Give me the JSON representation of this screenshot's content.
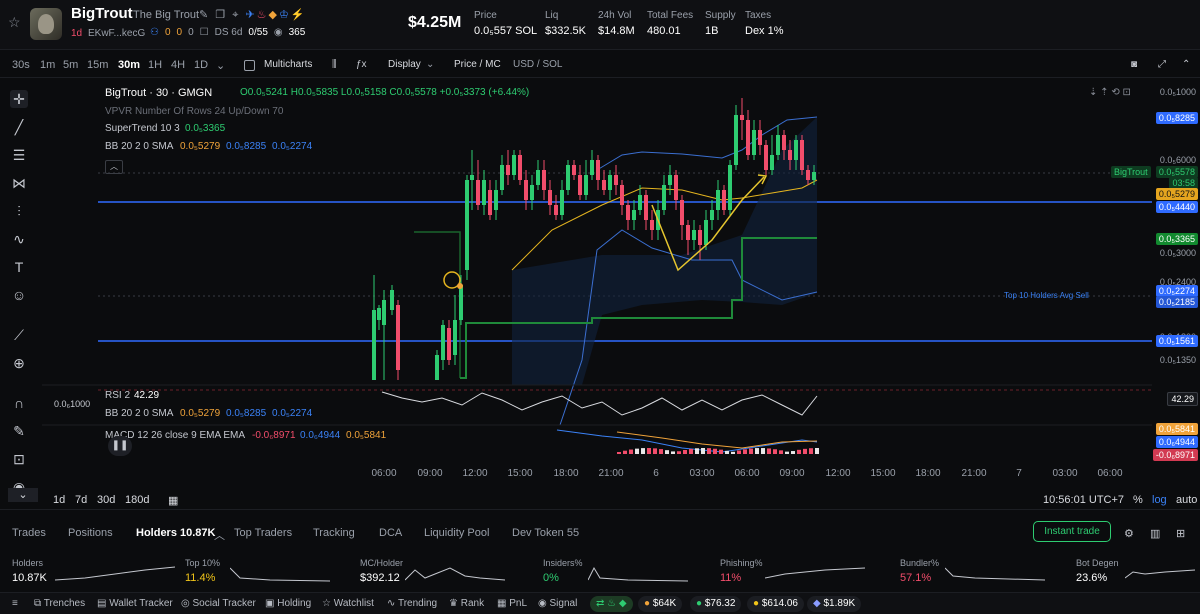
{
  "header": {
    "token_name": "BigTrout",
    "token_full_name": "The Big Trout",
    "age": "1d",
    "address": "EKwF...kecG",
    "badges": [
      "0",
      "0",
      "0"
    ],
    "ds_label": "DS 6d",
    "holders_ratio": "0/55",
    "views": "365",
    "market_cap": "$4.25M",
    "stats": [
      {
        "label": "Price",
        "value": "0.0₅557 SOL"
      },
      {
        "label": "Liq",
        "value": "$332.5K"
      },
      {
        "label": "24h Vol",
        "value": "$14.8M"
      },
      {
        "label": "Total Fees",
        "value": "480.01"
      },
      {
        "label": "Supply",
        "value": "1B"
      },
      {
        "label": "Taxes",
        "value": "Dex 1%"
      }
    ]
  },
  "toolbar": {
    "timeframes": [
      "30s",
      "1m",
      "5m",
      "15m",
      "30m",
      "1H",
      "4H",
      "1D"
    ],
    "active_timeframe": "30m",
    "multicharts": "Multicharts",
    "display": "Display",
    "price_mc": "Price / MC",
    "usd_sol": "USD / SOL"
  },
  "legend": {
    "title": "BigTrout · 30 · GMGN",
    "ohlc": "O0.0₅5241 H0.0₅5835 L0.0₅5158 C0.0₅5578 +0.0₅3373 (+6.44%)",
    "vpvr": "VPVR Number Of Rows 24 Up/Down 70",
    "supertrend_label": "SuperTrend 10 3",
    "supertrend_value": "0.0₅3365",
    "bb_label": "BB 20 2 0 SMA",
    "bb_values": [
      "0.0₅5279",
      "0.0₅8285",
      "0.0₅2274"
    ],
    "rsi_label": "RSI 2",
    "rsi_value": "42.29",
    "bb2_label": "BB 20 2 0 SMA",
    "bb2_values": [
      "0.0₅5279",
      "0.0₅8285",
      "0.0₅2274"
    ],
    "macd_label": "MACD 12 26 close 9 EMA EMA",
    "macd_values": [
      "-0.0₆8971",
      "0.0₆4944",
      "0.0₅5841"
    ],
    "rsi_scale": "0.0₆1000",
    "holders_avg_sell": "Top 10 Holders Avg Sell"
  },
  "price_scale": {
    "labels": [
      "0.0₅1000",
      "0.0₅8285",
      "0.0₅6000",
      "0.0₅5578",
      "03:58",
      "0.0₅5279",
      "0.0₅4440",
      "0.0₅3365",
      "0.0₅3000",
      "0.0₅2400",
      "0.0₅2274",
      "0.0₅2185",
      "0.0₅1800",
      "0.0₅1561",
      "0.0₅1350"
    ],
    "symbol_tag": "BigTrout",
    "rsi_tag": "42.29",
    "macd_tags": [
      "0.0₅5841",
      "0.0₆4944",
      "-0.0₆8971"
    ]
  },
  "time_axis": [
    "06:00",
    "09:00",
    "12:00",
    "15:00",
    "18:00",
    "21:00",
    "6",
    "03:00",
    "06:00",
    "09:00",
    "12:00",
    "15:00",
    "18:00",
    "21:00",
    "7",
    "03:00",
    "06:00"
  ],
  "range_bar": {
    "ranges": [
      "1d",
      "7d",
      "30d",
      "180d"
    ],
    "clock": "10:56:01 UTC+7",
    "percent": "%",
    "log": "log",
    "auto": "auto"
  },
  "tabs": [
    "Trades",
    "Positions",
    "Holders 10.87K",
    "Top Traders",
    "Tracking",
    "DCA",
    "Liquidity Pool",
    "Dev Token 55"
  ],
  "active_tab": "Holders 10.87K",
  "instant_trade": "Instant trade",
  "holder_stats": [
    {
      "label": "Holders",
      "value": "10.87K",
      "color": "#ffffff"
    },
    {
      "label": "Top 10%",
      "value": "11.4%",
      "color": "#f0c419"
    },
    {
      "label": "MC/Holder",
      "value": "$392.12",
      "color": "#ffffff"
    },
    {
      "label": "Insiders%",
      "value": "0%",
      "color": "#2ecc71"
    },
    {
      "label": "Phishing%",
      "value": "11%",
      "color": "#f24d6b"
    },
    {
      "label": "Bundler%",
      "value": "57.1%",
      "color": "#f24d6b"
    },
    {
      "label": "Bot Degen",
      "value": "23.6%",
      "color": "#ffffff"
    }
  ],
  "footer": {
    "items": [
      "Trenches",
      "Wallet Tracker",
      "Social Tracker",
      "Holding",
      "Watchlist",
      "Trending",
      "Rank",
      "PnL",
      "Signal"
    ],
    "pills": [
      "$64K",
      "$76.32",
      "$614.06",
      "$1.89K"
    ]
  },
  "chart_data": {
    "type": "candlestick",
    "title": "BigTrout · 30 · GMGN",
    "indicators": [
      "SuperTrend 10 3",
      "BB 20 2 0 SMA",
      "RSI 2",
      "MACD 12 26 close 9 EMA EMA"
    ],
    "log_scale": true,
    "last_close": "0.0₅5578",
    "change_pct": "+6.44%"
  },
  "colors": {
    "up": "#2ecc71",
    "down": "#f24d6b",
    "bb": "#3b82f6",
    "basis": "#f0c419",
    "supertrend": "#1f8a3a"
  }
}
